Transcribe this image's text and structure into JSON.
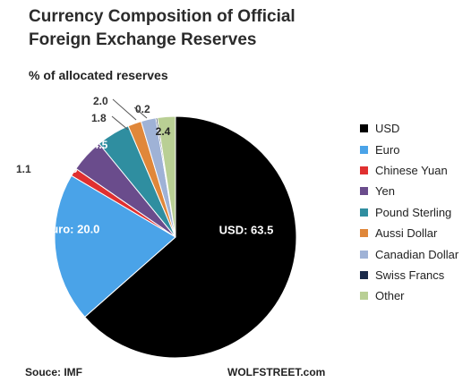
{
  "title_line1": "Currency Composition of Official",
  "title_line2": "Foreign Exchange Reserves",
  "subtitle": "% of allocated reserves",
  "source": "Souce: IMF",
  "credit": "WOLFSTREET.com",
  "chart_data": {
    "type": "pie",
    "slices": [
      {
        "name": "USD",
        "value": 63.5,
        "label": "USD: 63.5",
        "color": "#000000"
      },
      {
        "name": "Euro",
        "value": 20.0,
        "label": "Euro:  20.0",
        "color": "#4aa3e8"
      },
      {
        "name": "Chinese Yuan",
        "value": 1.1,
        "label": "1.1",
        "color": "#e03030"
      },
      {
        "name": "Yen",
        "value": 4.5,
        "label": "4.5",
        "color": "#6a4c8c"
      },
      {
        "name": "Pound Sterling",
        "value": 4.5,
        "label": "4.5",
        "color": "#2f8ea0"
      },
      {
        "name": "Aussi Dollar",
        "value": 1.8,
        "label": "1.8",
        "color": "#e0873a"
      },
      {
        "name": "Canadian Dollar",
        "value": 2.0,
        "label": "2.0",
        "color": "#9fb2d6"
      },
      {
        "name": "Swiss Francs",
        "value": 0.2,
        "label": "0.2",
        "color": "#1a2a4a"
      },
      {
        "name": "Other",
        "value": 2.4,
        "label": "2.4",
        "color": "#b9cf94"
      }
    ],
    "legend_position": "right"
  }
}
